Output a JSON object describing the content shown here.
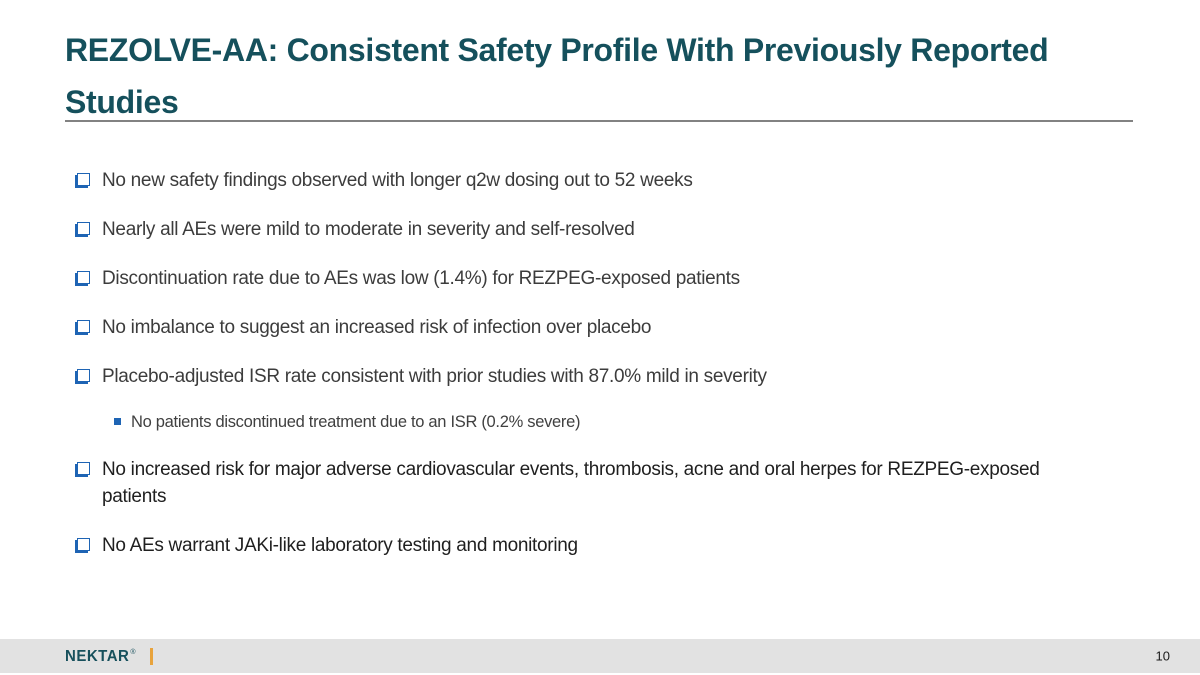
{
  "slide": {
    "title": "REZOLVE-AA: Consistent Safety Profile With Previously Reported Studies",
    "bullets": [
      {
        "label": "No new safety findings observed with longer q2w dosing out to 52 weeks"
      },
      {
        "label": "Nearly all AEs were mild to moderate in severity and self-resolved"
      },
      {
        "label": "Discontinuation rate due to AEs was low (1.4%) for REZPEG-exposed patients"
      },
      {
        "label": "No imbalance to suggest an increased risk of infection over placebo"
      },
      {
        "label": "Placebo-adjusted ISR rate consistent with prior studies with 87.0% mild in severity"
      },
      {
        "label": "No increased risk for major adverse cardiovascular events, thrombosis, acne and oral herpes for REZPEG-exposed patients"
      },
      {
        "label": "No AEs warrant JAKi-like laboratory testing and monitoring"
      }
    ],
    "sub_bullet": {
      "label": "No patients discontinued treatment due to an ISR (0.2% severe)"
    },
    "footer": {
      "logo_text": "NEKTAR",
      "logo_reg_mark": "®",
      "page_number": "10"
    },
    "colors": {
      "title_teal": "#15505C",
      "bullet_blue": "#1E64B4",
      "body_text": "#3C3C3C",
      "rule_gray": "#828282",
      "footer_gray": "#E2E2E2",
      "logo_gold": "#E8A33C"
    }
  }
}
